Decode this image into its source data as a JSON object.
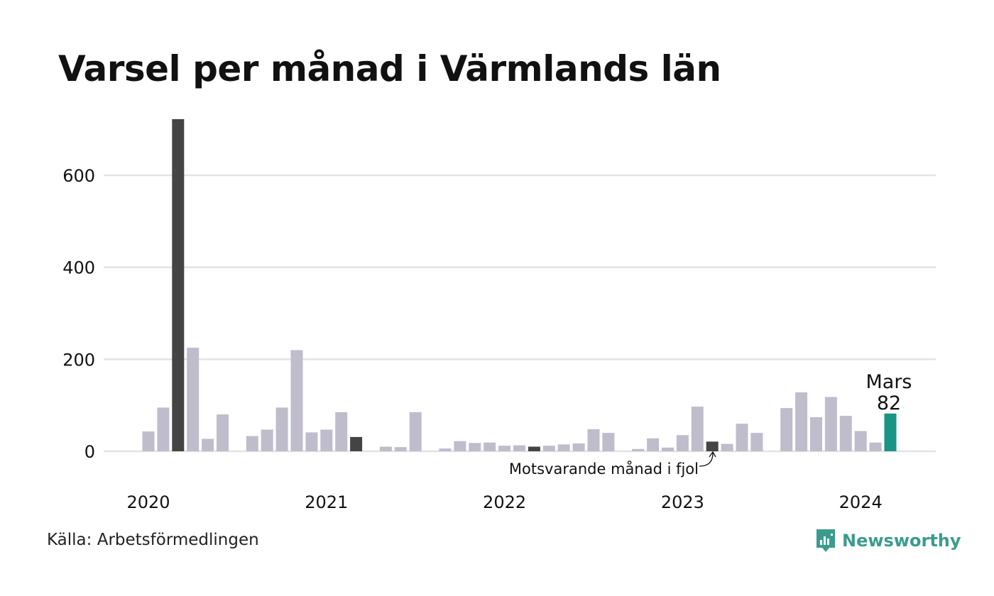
{
  "title": "Varsel per månad i Värmlands län",
  "source": "Källa: Arbetsförmedlingen",
  "logo": {
    "text": "Newsworthy",
    "icon": "newsworthy-chart-icon"
  },
  "colors": {
    "bar": "#bfbdcb",
    "bar_same_month": "#444444",
    "bar_highlight": "#1a9485",
    "grid": "#e3e3e3",
    "logo": "#3a9c8c"
  },
  "chart_data": {
    "type": "bar",
    "title": "Varsel per månad i Värmlands län",
    "xlabel": "",
    "ylabel": "",
    "ylim": [
      0,
      720
    ],
    "y_ticks": [
      0,
      200,
      400,
      600
    ],
    "grid": true,
    "x_tick_labels": [
      "2020",
      "2021",
      "2022",
      "2023",
      "2024"
    ],
    "categories": [
      "2020-01",
      "2020-02",
      "2020-03",
      "2020-04",
      "2020-05",
      "2020-06",
      "2020-07",
      "2020-08",
      "2020-09",
      "2020-10",
      "2020-11",
      "2020-12",
      "2021-01",
      "2021-02",
      "2021-03",
      "2021-04",
      "2021-05",
      "2021-06",
      "2021-07",
      "2021-08",
      "2021-09",
      "2021-10",
      "2021-11",
      "2021-12",
      "2022-01",
      "2022-02",
      "2022-03",
      "2022-04",
      "2022-05",
      "2022-06",
      "2022-07",
      "2022-08",
      "2022-09",
      "2022-10",
      "2022-11",
      "2022-12",
      "2023-01",
      "2023-02",
      "2023-03",
      "2023-04",
      "2023-05",
      "2023-06",
      "2023-07",
      "2023-08",
      "2023-09",
      "2023-10",
      "2023-11",
      "2023-12",
      "2024-01",
      "2024-02",
      "2024-03"
    ],
    "values": [
      43,
      95,
      722,
      225,
      27,
      80,
      0,
      33,
      47,
      95,
      220,
      41,
      47,
      85,
      31,
      0,
      10,
      9,
      85,
      0,
      6,
      22,
      18,
      19,
      12,
      13,
      10,
      12,
      15,
      17,
      48,
      40,
      0,
      5,
      28,
      8,
      35,
      97,
      21,
      16,
      60,
      40,
      0,
      94,
      128,
      74,
      118,
      77,
      44,
      19,
      82
    ],
    "same_month_indices": [
      2,
      14,
      26,
      38
    ],
    "highlight": {
      "index": 50,
      "month": "Mars",
      "value": "82"
    },
    "annotation": {
      "text": "Motsvarande månad i fjol",
      "target_index": 38
    }
  }
}
